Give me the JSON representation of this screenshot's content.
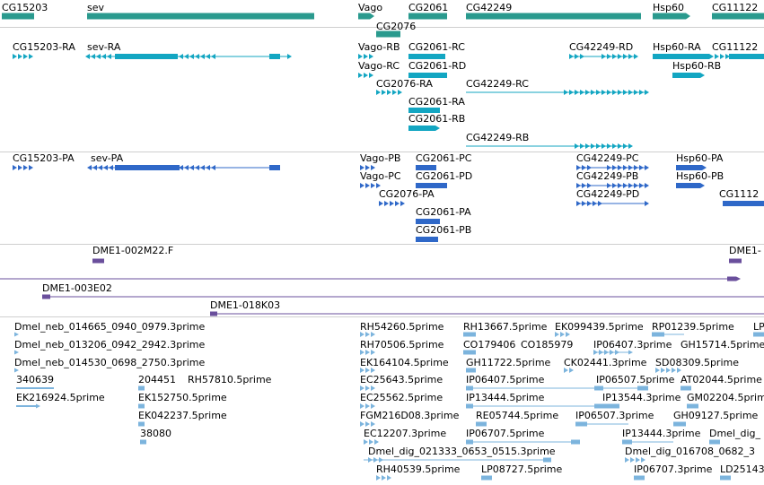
{
  "colors": {
    "gene": "#2a9a8e",
    "mrna": "#13a6c2",
    "protein": "#2f68c8",
    "clone": "#6a4f9c",
    "est": "#7cb4dd",
    "separator": "#cfcfcf"
  },
  "gene_labels": [
    "CG15203",
    "sev",
    "Vago",
    "CG2061",
    "CG42249",
    "Hsp60",
    "CG11122",
    "CG2076"
  ],
  "mrna_labels": [
    "CG15203-RA",
    "sev-RA",
    "Vago-RB",
    "CG2061-RC",
    "CG42249-RD",
    "Hsp60-RA",
    "CG11122",
    "Vago-RC",
    "CG2061-RD",
    "Hsp60-RB",
    "CG2076-RA",
    "CG42249-RC",
    "CG2061-RA",
    "CG2061-RB",
    "CG42249-RB"
  ],
  "protein_labels": [
    "CG15203-PA",
    "sev-PA",
    "Vago-PB",
    "CG2061-PC",
    "CG42249-PC",
    "Hsp60-PA",
    "Vago-PC",
    "CG2061-PD",
    "CG42249-PB",
    "Hsp60-PB",
    "CG2076-PA",
    "CG42249-PD",
    "CG1112",
    "CG2061-PA",
    "CG2061-PB"
  ],
  "clone_labels": [
    "DME1-002M22.F",
    "DME1-",
    "DME1-003E02",
    "DME1-018K03"
  ],
  "est_labels": [
    "Dmel_neb_014665_0940_0979.3prime",
    "RH54260.5prime",
    "RH13667.5prime",
    "EK099439.5prime",
    "RP01239.5prime",
    "LP",
    "Dmel_neb_013206_0942_2942.3prime",
    "RH70506.5prime",
    "CO179406",
    "CO185979",
    "IP06407.3prime",
    "GH15714.5prime",
    "Dmel_neb_014530_0698_2750.3prime",
    "EK164104.5prime",
    "GH11722.5prime",
    "CK02441.3prime",
    "SD08309.5prime",
    "340639",
    "204451",
    "RH57810.5prime",
    "EC25643.5prime",
    "IP06407.5prime",
    "IP06507.5prime",
    "AT02044.5prime",
    "EK216924.5prime",
    "EK152750.5prime",
    "EC25562.5prime",
    "IP13444.5prime",
    "IP13544.3prime",
    "GM02204.5prime",
    "EK042237.5prime",
    "FGM216D08.3prime",
    "RE05744.5prime",
    "IP06507.3prime",
    "GH09127.5prime",
    "38080",
    "EC12207.3prime",
    "IP06707.5prime",
    "IP13444.3prime",
    "Dmel_dig_",
    "Dmel_dig_021333_0653_0515.3prime",
    "Dmel_dig_016708_0682_3",
    "RH40539.5prime",
    "LP08727.5prime",
    "IP06707.3prime",
    "LD25143"
  ]
}
